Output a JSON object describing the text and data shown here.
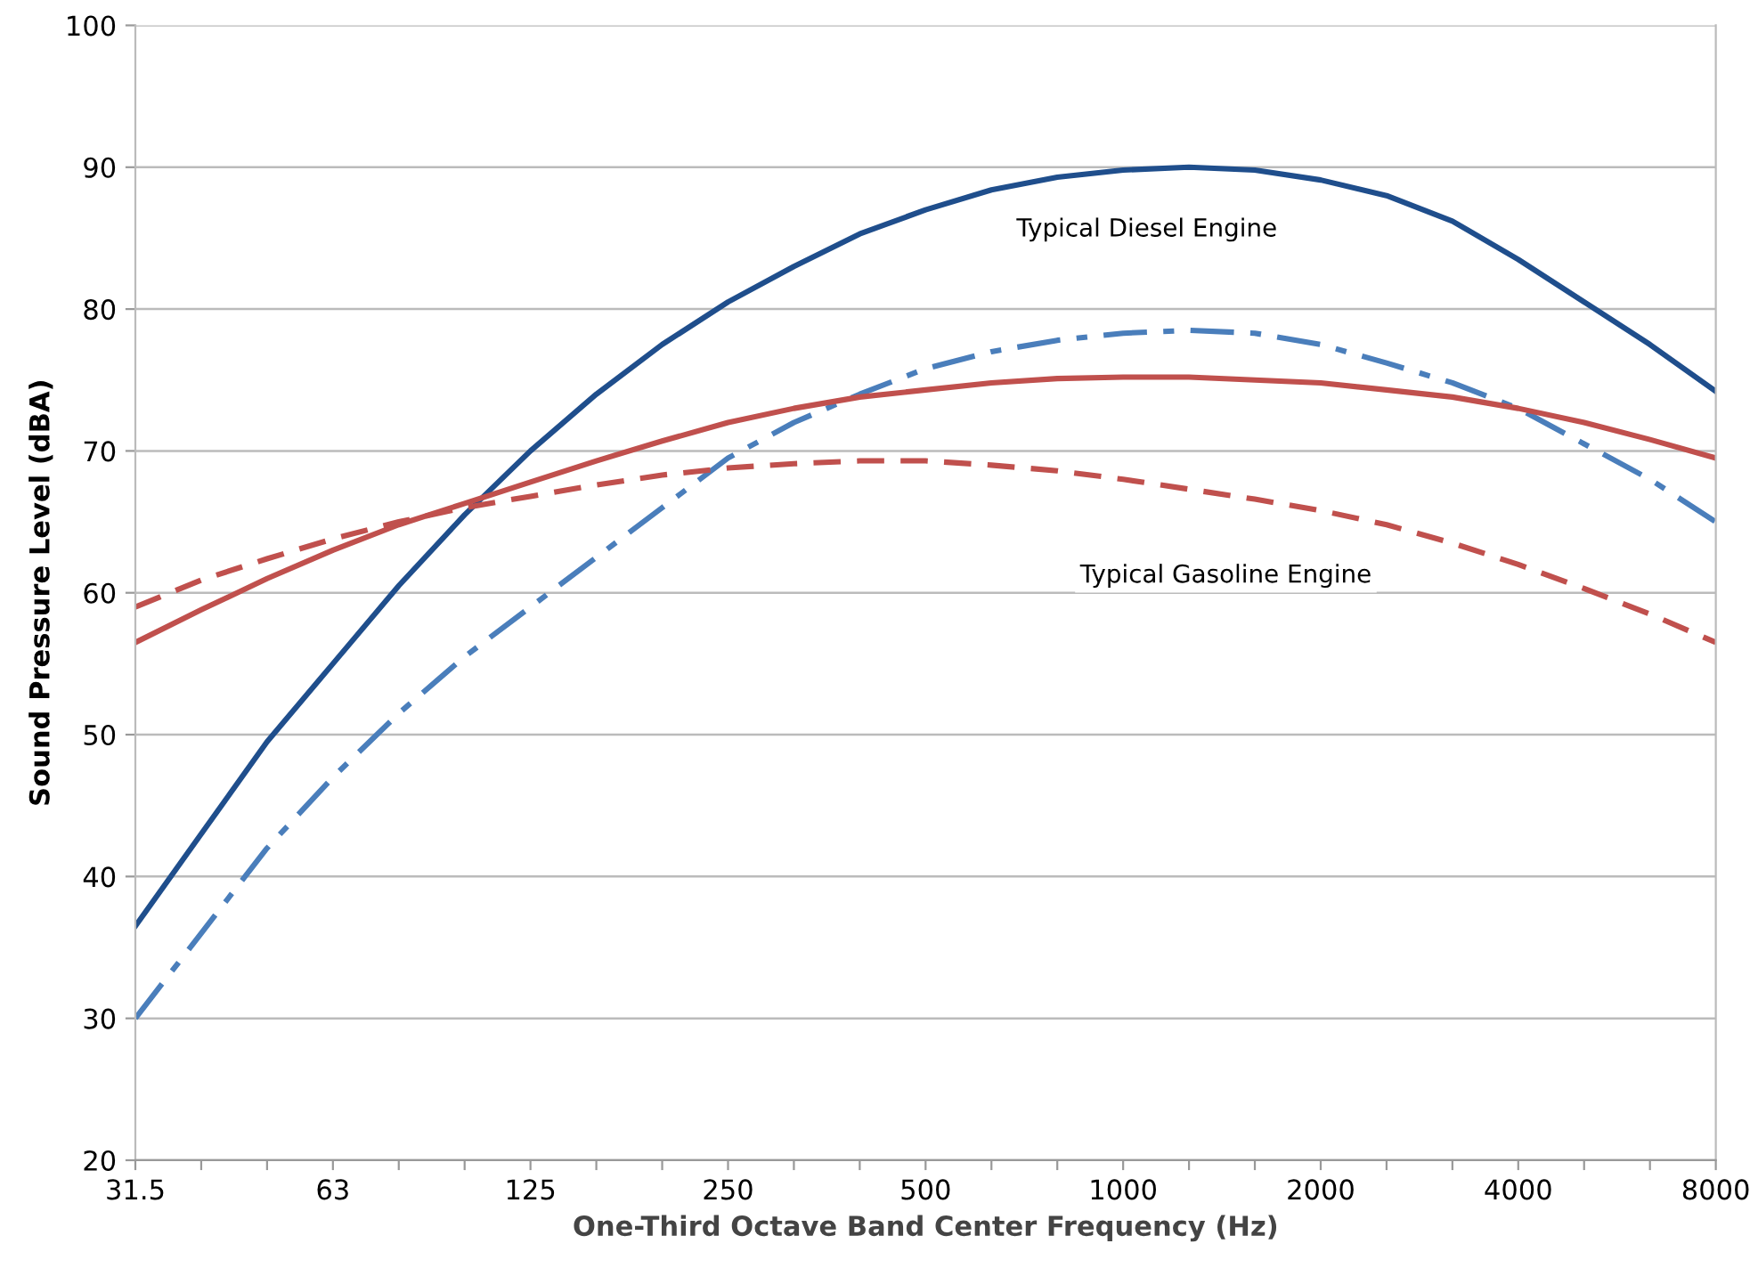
{
  "chart_data": {
    "type": "line",
    "xlabel": "One-Third Octave Band Center Frequency (Hz)",
    "ylabel": "Sound Pressure Level (dBA)",
    "categories": [
      "31.5",
      null,
      null,
      "63",
      null,
      null,
      "125",
      null,
      null,
      "250",
      null,
      null,
      "500",
      null,
      null,
      "1000",
      null,
      null,
      "2000",
      null,
      null,
      "4000",
      null,
      null,
      "8000"
    ],
    "series": [
      {
        "color": "#1f4e8c",
        "line_style": "solid",
        "values": [
          36.5,
          43,
          49.5,
          55,
          60.5,
          65.5,
          70,
          74,
          77.5,
          80.5,
          83,
          85.3,
          87,
          88.4,
          89.3,
          89.8,
          90,
          89.8,
          89.1,
          88,
          86.2,
          83.5,
          80.5,
          77.5,
          74.2
        ]
      },
      {
        "color": "#4a7ebb",
        "line_style": "dashdot",
        "values": [
          30,
          36,
          42,
          47,
          51.5,
          55.5,
          59,
          62.5,
          66,
          69.5,
          72,
          74,
          75.8,
          77,
          77.8,
          78.3,
          78.5,
          78.3,
          77.5,
          76.2,
          74.8,
          73,
          70.5,
          68,
          65
        ]
      },
      {
        "color": "#c0504d",
        "line_style": "solid",
        "values": [
          56.5,
          58.8,
          61,
          63,
          64.8,
          66.3,
          67.8,
          69.3,
          70.7,
          72,
          73,
          73.8,
          74.3,
          74.8,
          75.1,
          75.2,
          75.2,
          75,
          74.8,
          74.3,
          73.8,
          73,
          72,
          70.8,
          69.5
        ]
      },
      {
        "color": "#c0504d",
        "line_style": "dashed",
        "values": [
          59,
          60.9,
          62.4,
          63.8,
          65,
          66,
          66.8,
          67.6,
          68.3,
          68.8,
          69.1,
          69.3,
          69.3,
          69,
          68.6,
          68,
          67.3,
          66.6,
          65.8,
          64.8,
          63.5,
          62,
          60.3,
          58.5,
          56.5
        ]
      }
    ],
    "annotations": [
      "Typical Diesel Engine",
      "Typical Gasoline Engine"
    ],
    "ylim": [
      20,
      100
    ],
    "yticks": [
      20,
      30,
      40,
      50,
      60,
      70,
      80,
      90,
      100
    ],
    "grid": "y",
    "marker": "none"
  }
}
